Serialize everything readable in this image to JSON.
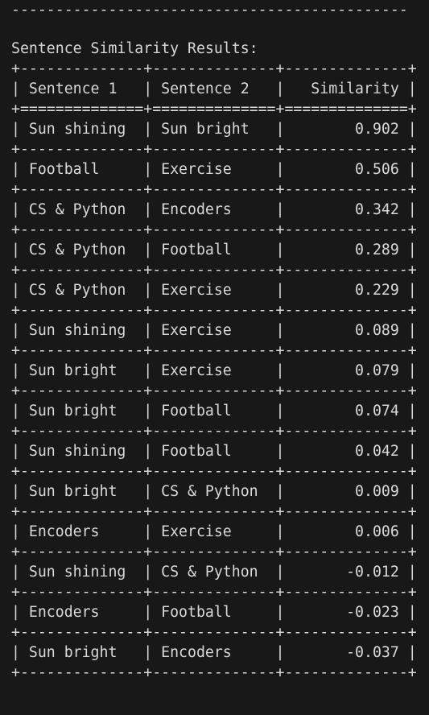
{
  "terminal": {
    "top_rule": "---------------------------------------------",
    "title": "Sentence Similarity Results:",
    "table": {
      "border": "+--------------+--------------+--------------+",
      "header_sep": "+==============+==============+==============+",
      "columns": [
        "Sentence 1",
        "Sentence 2",
        "Similarity"
      ],
      "rows": [
        {
          "s1": "Sun shining",
          "s2": "Sun bright",
          "sim": "0.902"
        },
        {
          "s1": "Football",
          "s2": "Exercise",
          "sim": "0.506"
        },
        {
          "s1": "CS & Python",
          "s2": "Encoders",
          "sim": "0.342"
        },
        {
          "s1": "CS & Python",
          "s2": "Football",
          "sim": "0.289"
        },
        {
          "s1": "CS & Python",
          "s2": "Exercise",
          "sim": "0.229"
        },
        {
          "s1": "Sun shining",
          "s2": "Exercise",
          "sim": "0.089"
        },
        {
          "s1": "Sun bright",
          "s2": "Exercise",
          "sim": "0.079"
        },
        {
          "s1": "Sun bright",
          "s2": "Football",
          "sim": "0.074"
        },
        {
          "s1": "Sun shining",
          "s2": "Football",
          "sim": "0.042"
        },
        {
          "s1": "Sun bright",
          "s2": "CS & Python",
          "sim": "0.009"
        },
        {
          "s1": "Encoders",
          "s2": "Exercise",
          "sim": "0.006"
        },
        {
          "s1": "Sun shining",
          "s2": "CS & Python",
          "sim": "-0.012"
        },
        {
          "s1": "Encoders",
          "s2": "Football",
          "sim": "-0.023"
        },
        {
          "s1": "Sun bright",
          "s2": "Encoders",
          "sim": "-0.037"
        }
      ]
    }
  }
}
